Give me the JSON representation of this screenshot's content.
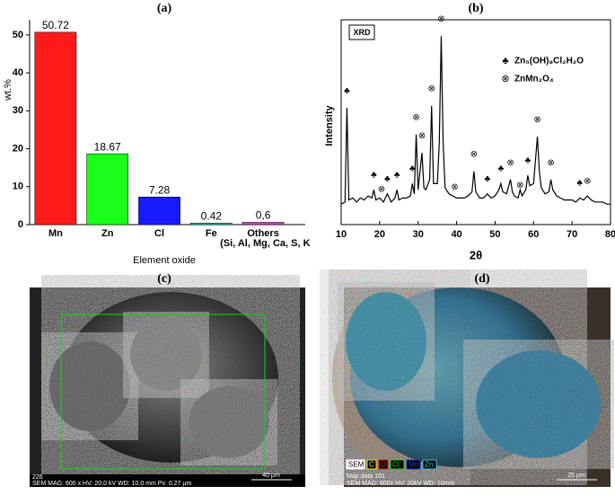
{
  "chart_data": [
    {
      "type": "bar",
      "title": "(a)",
      "y_label": "wt.%",
      "x_label": "Element oxide",
      "categories": [
        "Mn",
        "Zn",
        "Cl",
        "Fe",
        "Others"
      ],
      "category_note": "(Si, Al, Mg, Ca, S, K, P, Ti)",
      "values": [
        50.72,
        18.67,
        7.28,
        0.42,
        0.6
      ],
      "value_labels": [
        "50.72",
        "18.67",
        "7.28",
        "0.42",
        "0,6"
      ],
      "colors": [
        "#ff1a1a",
        "#1aff1a",
        "#1a1aff",
        "#1ad0b0",
        "#d040d0"
      ],
      "ylim": [
        0,
        54
      ],
      "yticks": [
        0,
        10,
        20,
        30,
        40,
        50
      ]
    },
    {
      "type": "line",
      "title": "(b)",
      "y_label": "Intensity",
      "x_label": "2θ",
      "box_label": "XRD",
      "xlim": [
        10,
        80
      ],
      "xticks": [
        10,
        20,
        30,
        40,
        50,
        60,
        70,
        80
      ],
      "ylim": [
        0,
        100
      ],
      "series": [
        {
          "name": "XRD",
          "color": "#000000",
          "x": [
            10,
            11,
            11.5,
            12,
            13,
            14,
            15,
            16,
            17,
            18,
            18.5,
            19,
            20,
            21,
            22,
            23,
            24,
            24.5,
            25,
            26,
            27,
            28,
            28.5,
            29,
            29.5,
            30,
            31,
            31.5,
            32,
            33,
            33.5,
            34,
            35,
            35.5,
            36,
            36.5,
            37,
            38,
            39,
            40,
            41,
            42,
            43,
            44,
            44.5,
            45,
            46,
            47,
            48,
            49,
            50,
            51,
            51.5,
            52,
            53,
            54,
            54.5,
            55,
            56,
            56.5,
            57,
            58,
            58.5,
            59,
            60,
            61,
            61.5,
            62,
            63,
            64,
            64.5,
            65,
            66,
            67,
            68,
            69,
            70,
            71,
            72,
            73,
            74,
            75,
            76,
            77,
            78,
            79,
            80
          ],
          "values": [
            10,
            11,
            57,
            12,
            13,
            11,
            13,
            12,
            14,
            13,
            17,
            12,
            13,
            11,
            15,
            11,
            13,
            17,
            12,
            13,
            13,
            14,
            20,
            15,
            44,
            17,
            35,
            18,
            17,
            22,
            58,
            20,
            20,
            40,
            92,
            40,
            18,
            15,
            14,
            13,
            13,
            13,
            14,
            16,
            26,
            16,
            13,
            13,
            15,
            13,
            14,
            17,
            20,
            16,
            15,
            22,
            16,
            14,
            13,
            17,
            14,
            17,
            24,
            19,
            20,
            43,
            26,
            18,
            15,
            16,
            22,
            17,
            14,
            13,
            12,
            12,
            12,
            11,
            13,
            12,
            14,
            12,
            11,
            11,
            11,
            10,
            10
          ]
        }
      ],
      "legend": [
        {
          "symbol": "♣",
          "label": "Zn₅(OH)₈Cl₂H₂O"
        },
        {
          "symbol": "⊗",
          "label": "ZnMn₂O₄"
        }
      ],
      "markers": [
        {
          "x": 11.5,
          "y": 63,
          "label": "♣"
        },
        {
          "x": 18.5,
          "y": 22,
          "label": "♣"
        },
        {
          "x": 22,
          "y": 20,
          "label": "♣"
        },
        {
          "x": 24.5,
          "y": 22,
          "label": "♣"
        },
        {
          "x": 28.5,
          "y": 25,
          "label": "♣"
        },
        {
          "x": 48,
          "y": 20,
          "label": "♣"
        },
        {
          "x": 51.5,
          "y": 25,
          "label": "♣"
        },
        {
          "x": 58.5,
          "y": 29,
          "label": "♣"
        },
        {
          "x": 72,
          "y": 18,
          "label": "♣"
        },
        {
          "x": 20.5,
          "y": 15,
          "label": "⊗"
        },
        {
          "x": 29.5,
          "y": 50,
          "label": "⊗"
        },
        {
          "x": 31,
          "y": 41,
          "label": "⊗"
        },
        {
          "x": 33.5,
          "y": 64,
          "label": "⊗"
        },
        {
          "x": 36,
          "y": 98,
          "label": "⊗"
        },
        {
          "x": 39.5,
          "y": 16,
          "label": "⊗"
        },
        {
          "x": 44.5,
          "y": 32,
          "label": "⊗"
        },
        {
          "x": 54,
          "y": 28,
          "label": "⊗"
        },
        {
          "x": 56.5,
          "y": 17,
          "label": "⊗"
        },
        {
          "x": 61,
          "y": 49,
          "label": "⊗"
        },
        {
          "x": 64.5,
          "y": 28,
          "label": "⊗"
        },
        {
          "x": 74,
          "y": 19,
          "label": "⊗"
        }
      ]
    }
  ],
  "images": [
    {
      "title": "(c)",
      "id": "226",
      "info": "SEM  MAG: 600 x  HV: 20.0 kV  WD: 10.0 mm  Px: 0.27 µm",
      "scale": "40 µm"
    },
    {
      "title": "(d)",
      "id": "Map data 101",
      "info": "SEM  MAG: 600x  HV: 20kV  WD: 10mm",
      "scale": "25 µm",
      "legend": [
        {
          "label": "SEM",
          "color": "#ffffff"
        },
        {
          "label": "C",
          "color": "#e8e020"
        },
        {
          "label": "O",
          "color": "#e02020"
        },
        {
          "label": "Cl",
          "color": "#20d020"
        },
        {
          "label": "Mn",
          "color": "#2030e0"
        },
        {
          "label": "Zn",
          "color": "#20d0e0"
        }
      ]
    }
  ]
}
